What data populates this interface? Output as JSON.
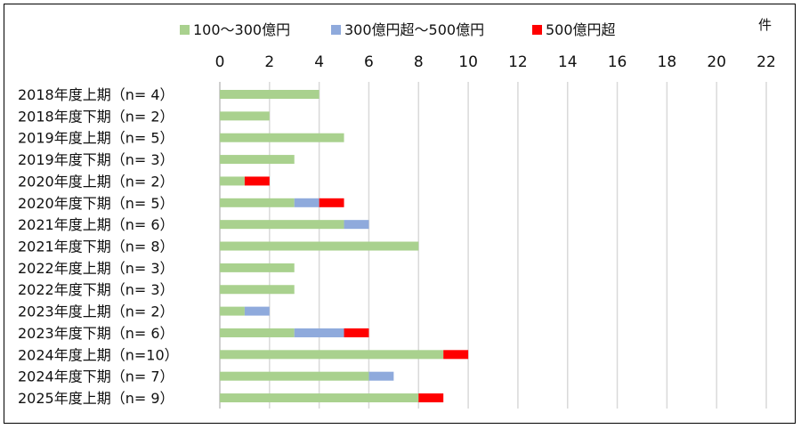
{
  "chart_data": {
    "type": "bar",
    "orientation": "horizontal",
    "stacked": true,
    "unit_label": "件",
    "xlim": [
      0,
      22
    ],
    "x_ticks": [
      0,
      2,
      4,
      6,
      8,
      10,
      12,
      14,
      16,
      18,
      20,
      22
    ],
    "grid": true,
    "legend_position": "top",
    "categories": [
      "2018年度上期（n=  4）",
      "2018年度下期（n=  2）",
      "2019年度上期（n=  5）",
      "2019年度下期（n=  3）",
      "2020年度上期（n=  2）",
      "2020年度下期（n=  5）",
      "2021年度上期（n=  6）",
      "2021年度下期（n=  8）",
      "2022年度上期（n=  3）",
      "2022年度下期（n=  3）",
      "2023年度上期（n=  2）",
      "2023年度下期（n=  6）",
      "2024年度上期（n=10）",
      "2024年度下期（n=  7）",
      "2025年度上期（n=  9）"
    ],
    "series": [
      {
        "name": "100～300億円",
        "color": "#a9d18e",
        "values": [
          4,
          2,
          5,
          3,
          1,
          3,
          5,
          8,
          3,
          3,
          1,
          3,
          9,
          6,
          8
        ]
      },
      {
        "name": "300億円超～500億円",
        "color": "#8faadc",
        "values": [
          0,
          0,
          0,
          0,
          0,
          1,
          1,
          0,
          0,
          0,
          1,
          2,
          0,
          1,
          0
        ]
      },
      {
        "name": "500億円超",
        "color": "#ff0000",
        "values": [
          0,
          0,
          0,
          0,
          1,
          1,
          0,
          0,
          0,
          0,
          0,
          1,
          1,
          0,
          1
        ]
      }
    ]
  }
}
